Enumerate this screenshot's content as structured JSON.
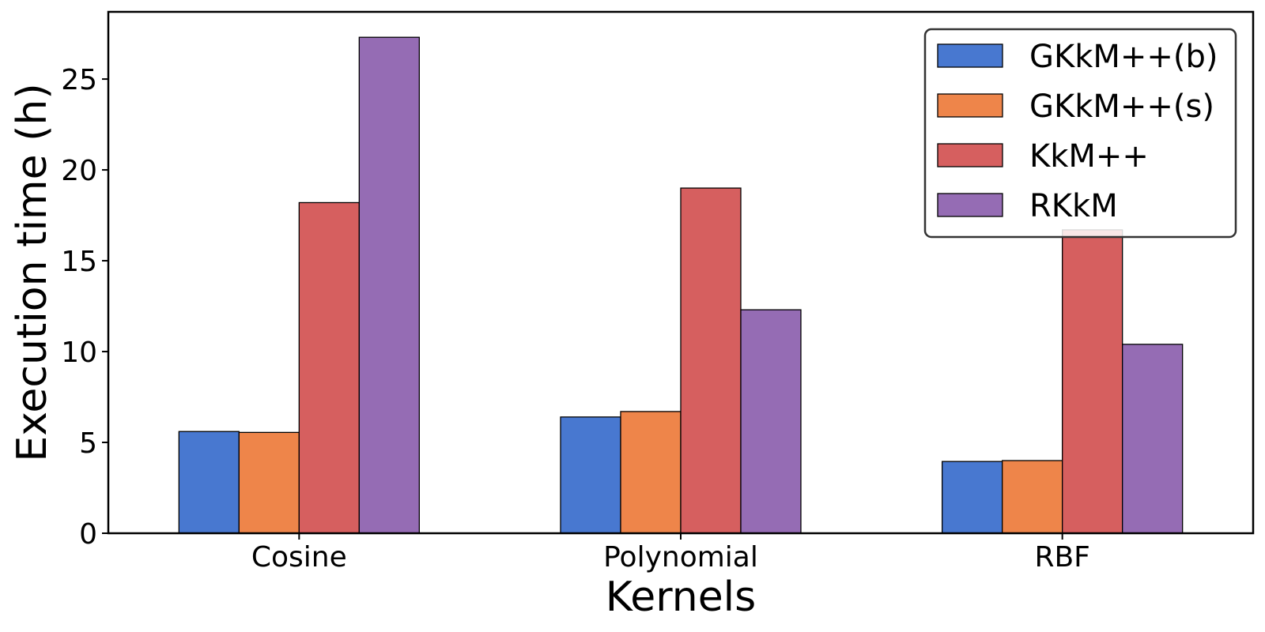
{
  "chart_data": {
    "type": "bar",
    "title": "",
    "xlabel": "Kernels",
    "ylabel": "Execution time (h)",
    "categories": [
      "Cosine",
      "Polynomial",
      "RBF"
    ],
    "ylim": [
      0,
      28.7
    ],
    "yticks": [
      0,
      5,
      10,
      15,
      20,
      25
    ],
    "grid": false,
    "legend_position": "top-right",
    "series": [
      {
        "name": "GKkM++(b)",
        "color": "#4878d0",
        "values": [
          5.6,
          6.4,
          3.95
        ]
      },
      {
        "name": "GKkM++(s)",
        "color": "#ee854a",
        "values": [
          5.55,
          6.7,
          4.0
        ]
      },
      {
        "name": "KkM++",
        "color": "#d65f5f",
        "values": [
          18.2,
          19.0,
          16.7
        ]
      },
      {
        "name": "RKkM",
        "color": "#956cb4",
        "values": [
          27.3,
          12.3,
          10.4
        ]
      }
    ]
  }
}
